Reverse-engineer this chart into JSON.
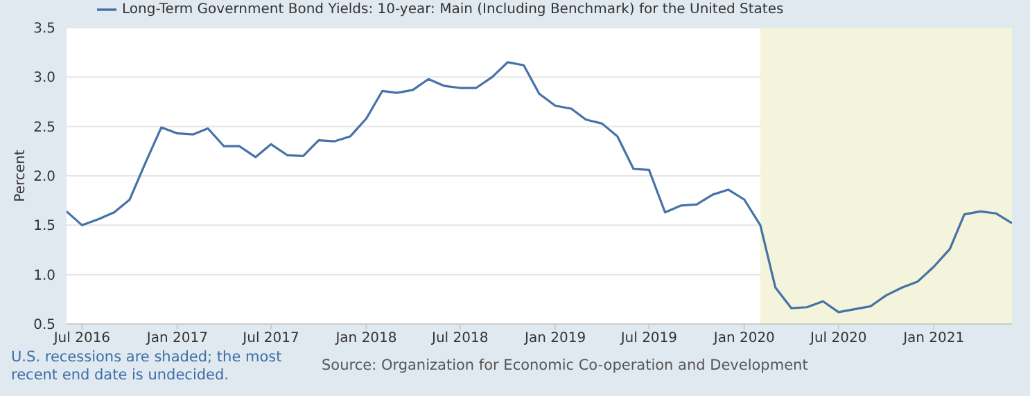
{
  "chart_data": {
    "type": "line",
    "x": [
      "2016-06-01",
      "2016-07-01",
      "2016-08-01",
      "2016-09-01",
      "2016-10-01",
      "2016-11-01",
      "2016-12-01",
      "2017-01-01",
      "2017-02-01",
      "2017-03-01",
      "2017-04-01",
      "2017-05-01",
      "2017-06-01",
      "2017-07-01",
      "2017-08-01",
      "2017-09-01",
      "2017-10-01",
      "2017-11-01",
      "2017-12-01",
      "2018-01-01",
      "2018-02-01",
      "2018-03-01",
      "2018-04-01",
      "2018-05-01",
      "2018-06-01",
      "2018-07-01",
      "2018-08-01",
      "2018-09-01",
      "2018-10-01",
      "2018-11-01",
      "2018-12-01",
      "2019-01-01",
      "2019-02-01",
      "2019-03-01",
      "2019-04-01",
      "2019-05-01",
      "2019-06-01",
      "2019-07-01",
      "2019-08-01",
      "2019-09-01",
      "2019-10-01",
      "2019-11-01",
      "2019-12-01",
      "2020-01-01",
      "2020-02-01",
      "2020-03-01",
      "2020-04-01",
      "2020-05-01",
      "2020-06-01",
      "2020-07-01",
      "2020-08-01",
      "2020-09-01",
      "2020-10-01",
      "2020-11-01",
      "2020-12-01",
      "2021-01-01",
      "2021-02-01",
      "2021-03-01",
      "2021-04-01",
      "2021-05-01",
      "2021-06-01"
    ],
    "series": [
      {
        "name": "Long-Term Government Bond Yields: 10-year: Main (Including Benchmark) for the United States",
        "color": "#4572a7",
        "values": [
          1.64,
          1.5,
          1.56,
          1.63,
          1.76,
          2.14,
          2.49,
          2.43,
          2.42,
          2.48,
          2.3,
          2.3,
          2.19,
          2.32,
          2.21,
          2.2,
          2.36,
          2.35,
          2.4,
          2.58,
          2.86,
          2.84,
          2.87,
          2.98,
          2.91,
          2.89,
          2.89,
          3.0,
          3.15,
          3.12,
          2.83,
          2.71,
          2.68,
          2.57,
          2.53,
          2.4,
          2.07,
          2.06,
          1.63,
          1.7,
          1.71,
          1.81,
          1.86,
          1.76,
          1.5,
          0.87,
          0.66,
          0.67,
          0.73,
          0.62,
          0.65,
          0.68,
          0.79,
          0.87,
          0.93,
          1.08,
          1.26,
          1.61,
          1.64,
          1.62,
          1.52
        ]
      }
    ],
    "ylabel": "Percent",
    "xlim": [
      "2016-06-01",
      "2021-06-01"
    ],
    "xticks": [
      {
        "value": "2016-07-01",
        "label": "Jul 2016"
      },
      {
        "value": "2017-01-01",
        "label": "Jan 2017"
      },
      {
        "value": "2017-07-01",
        "label": "Jul 2017"
      },
      {
        "value": "2018-01-01",
        "label": "Jan 2018"
      },
      {
        "value": "2018-07-01",
        "label": "Jul 2018"
      },
      {
        "value": "2019-01-01",
        "label": "Jan 2019"
      },
      {
        "value": "2019-07-01",
        "label": "Jul 2019"
      },
      {
        "value": "2020-01-01",
        "label": "Jan 2020"
      },
      {
        "value": "2020-07-01",
        "label": "Jul 2020"
      },
      {
        "value": "2021-01-01",
        "label": "Jan 2021"
      }
    ],
    "ylim": [
      0.5,
      3.5
    ],
    "yticks": [
      0.5,
      {
        "value": 1,
        "label": "1.0"
      },
      1.5,
      {
        "value": 2,
        "label": "2.0"
      },
      2.5,
      {
        "value": 3,
        "label": "3.0"
      },
      3.5
    ],
    "bands": [
      {
        "axis": "x",
        "from": "2020-02-01",
        "to": "2021-06-01",
        "label": null,
        "color": "#f4f3dc"
      }
    ],
    "grid": "y",
    "legend": "top",
    "marker": "none",
    "line_style": "solid",
    "annotations": [
      "U.S. recessions are shaded; the most recent end date is undecided.",
      "Source: Organization for Economic Co-operation and Development"
    ]
  }
}
